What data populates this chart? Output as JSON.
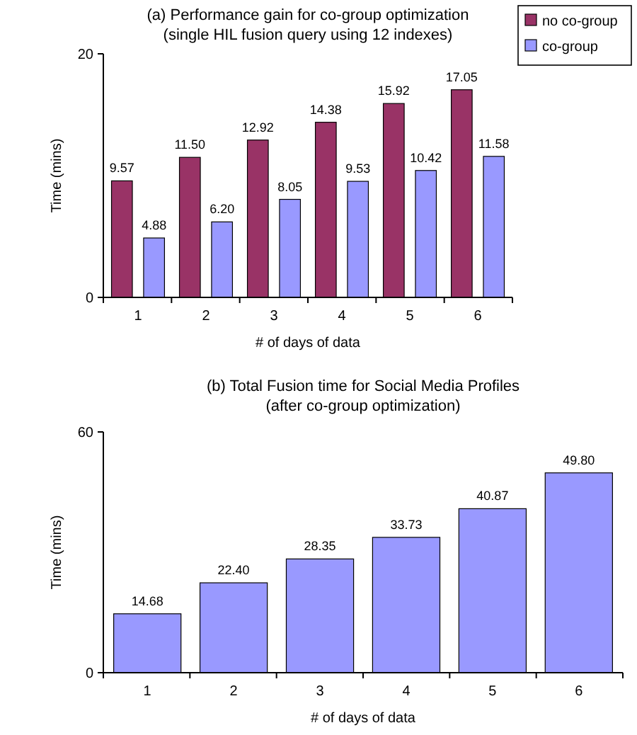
{
  "chart_data": [
    {
      "type": "bar",
      "title": "(a) Performance gain for co-group optimization",
      "subtitle": "(single HIL fusion query using 12 indexes)",
      "xlabel": "# of days of data",
      "ylabel": "Time (mins)",
      "categories": [
        "1",
        "2",
        "3",
        "4",
        "5",
        "6"
      ],
      "series": [
        {
          "name": "no co-group",
          "color": "#993366",
          "values": [
            9.57,
            11.5,
            12.92,
            14.38,
            15.92,
            17.05
          ],
          "value_labels": [
            "9.57",
            "11.50",
            "12.92",
            "14.38",
            "15.92",
            "17.05"
          ]
        },
        {
          "name": "co-group",
          "color": "#9999ff",
          "values": [
            4.88,
            6.2,
            8.05,
            9.53,
            10.42,
            11.58
          ],
          "value_labels": [
            "4.88",
            "6.20",
            "8.05",
            "9.53",
            "10.42",
            "11.58"
          ]
        }
      ],
      "ylim": [
        0,
        20
      ],
      "yticks": [
        0,
        20
      ],
      "legend": "top right"
    },
    {
      "type": "bar",
      "title": "(b) Total Fusion time for Social Media Profiles",
      "subtitle": "(after co-group optimization)",
      "xlabel": "# of days of data",
      "ylabel": "Time (mins)",
      "categories": [
        "1",
        "2",
        "3",
        "4",
        "5",
        "6"
      ],
      "series": [
        {
          "color": "#9999ff",
          "values": [
            14.68,
            22.4,
            28.35,
            33.73,
            40.87,
            49.8
          ],
          "value_labels": [
            "14.68",
            "22.40",
            "28.35",
            "33.73",
            "40.87",
            "49.80"
          ]
        }
      ],
      "ylim": [
        0,
        60
      ],
      "yticks": [
        0,
        60
      ]
    }
  ]
}
